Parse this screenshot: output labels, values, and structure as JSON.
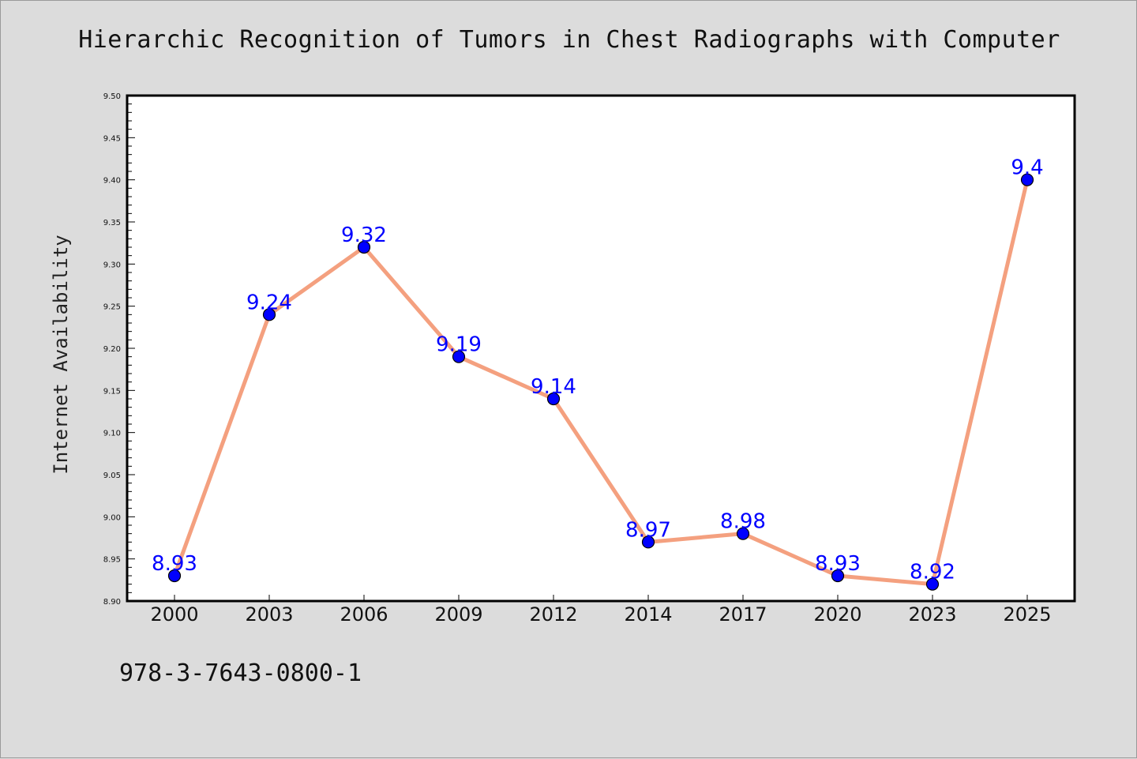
{
  "title": "Hierarchic Recognition of Tumors in Chest Radiographs with Computer",
  "footer_text": "978-3-7643-0800-1",
  "chart_data": {
    "type": "line",
    "title": "Hierarchic Recognition of Tumors in Chest Radiographs with Computer",
    "xlabel": "",
    "ylabel": "Internet Availability",
    "categories": [
      "2000",
      "2003",
      "2006",
      "2009",
      "2012",
      "2014",
      "2017",
      "2020",
      "2023",
      "2025"
    ],
    "series": [
      {
        "values": [
          8.93,
          9.24,
          9.32,
          9.19,
          9.14,
          8.97,
          8.98,
          8.93,
          8.92,
          9.4
        ],
        "labels": [
          "8.93",
          "9.24",
          "9.32",
          "9.19",
          "9.14",
          "8.97",
          "8.98",
          "8.93",
          "8.92",
          "9.4"
        ]
      }
    ],
    "ylim": [
      8.9,
      9.5
    ],
    "yticks": [
      "8.90",
      "8.95",
      "9.00",
      "9.05",
      "9.10",
      "9.15",
      "9.20",
      "9.25",
      "9.30",
      "9.35",
      "9.40",
      "9.45",
      "9.50"
    ],
    "grid": false,
    "legend": "none",
    "colors": {
      "line": "#f4a07f",
      "marker": "#0000ff",
      "marker_edge": "#000000",
      "data_label": "#0000ff",
      "plot_bg": "#ffffff",
      "page_bg": "#dcdcdc"
    }
  }
}
